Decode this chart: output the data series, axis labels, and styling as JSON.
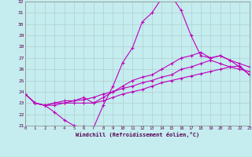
{
  "xlabel": "Windchill (Refroidissement éolien,°C)",
  "xlim": [
    0,
    23
  ],
  "ylim": [
    21,
    32
  ],
  "xticks": [
    0,
    1,
    2,
    3,
    4,
    5,
    6,
    7,
    8,
    9,
    10,
    11,
    12,
    13,
    14,
    15,
    16,
    17,
    18,
    19,
    20,
    21,
    22,
    23
  ],
  "yticks": [
    21,
    22,
    23,
    24,
    25,
    26,
    27,
    28,
    29,
    30,
    31,
    32
  ],
  "bg_color": "#c5ecee",
  "grid_color": "#b0d0d0",
  "line_color": "#bb00bb",
  "series": [
    [
      23.8,
      23.0,
      22.8,
      22.2,
      21.5,
      21.0,
      20.9,
      20.8,
      22.8,
      24.5,
      26.6,
      27.9,
      30.2,
      31.0,
      32.3,
      32.5,
      31.2,
      29.0,
      27.2,
      27.0,
      27.2,
      26.8,
      26.2,
      25.5
    ],
    [
      23.8,
      23.0,
      22.8,
      22.8,
      23.0,
      23.2,
      23.5,
      23.0,
      23.5,
      24.0,
      24.5,
      25.0,
      25.3,
      25.5,
      26.0,
      26.5,
      27.0,
      27.2,
      27.5,
      27.0,
      27.2,
      26.8,
      26.5,
      26.2
    ],
    [
      23.8,
      23.0,
      22.8,
      23.0,
      23.2,
      23.2,
      23.3,
      23.5,
      23.8,
      24.0,
      24.3,
      24.5,
      24.8,
      25.0,
      25.3,
      25.5,
      26.0,
      26.2,
      26.5,
      26.8,
      26.5,
      26.2,
      26.0,
      25.8
    ],
    [
      23.8,
      23.0,
      22.8,
      23.0,
      23.0,
      23.0,
      23.0,
      23.0,
      23.2,
      23.5,
      23.8,
      24.0,
      24.2,
      24.5,
      24.8,
      25.0,
      25.2,
      25.4,
      25.6,
      25.8,
      26.0,
      26.2,
      26.3,
      25.5
    ]
  ]
}
